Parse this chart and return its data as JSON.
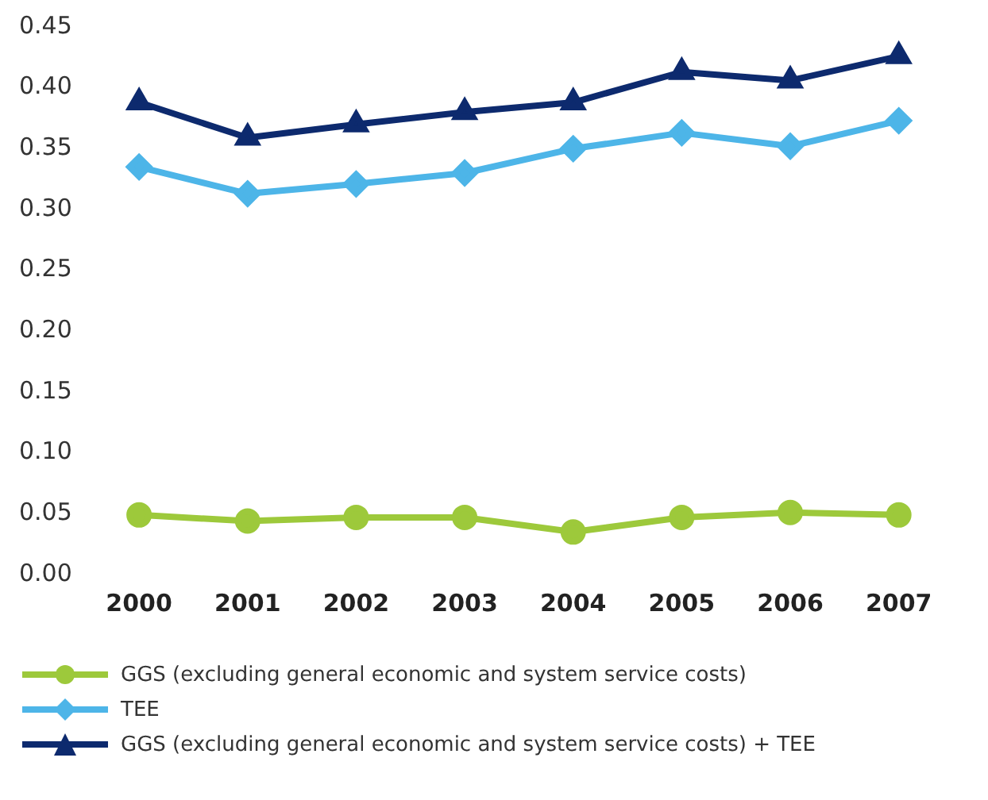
{
  "chart_data": {
    "type": "line",
    "categories": [
      "2000",
      "2001",
      "2002",
      "2003",
      "2004",
      "2005",
      "2006",
      "2007"
    ],
    "series": [
      {
        "name": "GGS  (excluding general economic and system service costs)",
        "color": "#9dc93b",
        "marker": "circle",
        "values": [
          0.049,
          0.044,
          0.047,
          0.047,
          0.035,
          0.047,
          0.051,
          0.049
        ]
      },
      {
        "name": "TEE",
        "color": "#4db5e8",
        "marker": "diamond",
        "values": [
          0.335,
          0.313,
          0.321,
          0.33,
          0.35,
          0.363,
          0.352,
          0.373
        ]
      },
      {
        "name": "GGS  (excluding general economic and system service costs) + TEE",
        "color": "#0d2a6e",
        "marker": "triangle",
        "values": [
          0.388,
          0.359,
          0.37,
          0.38,
          0.388,
          0.413,
          0.406,
          0.426
        ]
      }
    ],
    "ylim": [
      0,
      0.45
    ],
    "yticks": [
      {
        "value": 0,
        "label": "0.00"
      },
      {
        "value": 0.05,
        "label": "0.05"
      },
      {
        "value": 0.1,
        "label": "0.10"
      },
      {
        "value": 0.15,
        "label": "0.15"
      },
      {
        "value": 0.2,
        "label": "0.20"
      },
      {
        "value": 0.25,
        "label": "0.25"
      },
      {
        "value": 0.3,
        "label": "0.30"
      },
      {
        "value": 0.35,
        "label": "0.35"
      },
      {
        "value": 0.4,
        "label": "0.40"
      },
      {
        "value": 0.45,
        "label": "0.45"
      }
    ],
    "grid": false,
    "legend": "bottom"
  }
}
